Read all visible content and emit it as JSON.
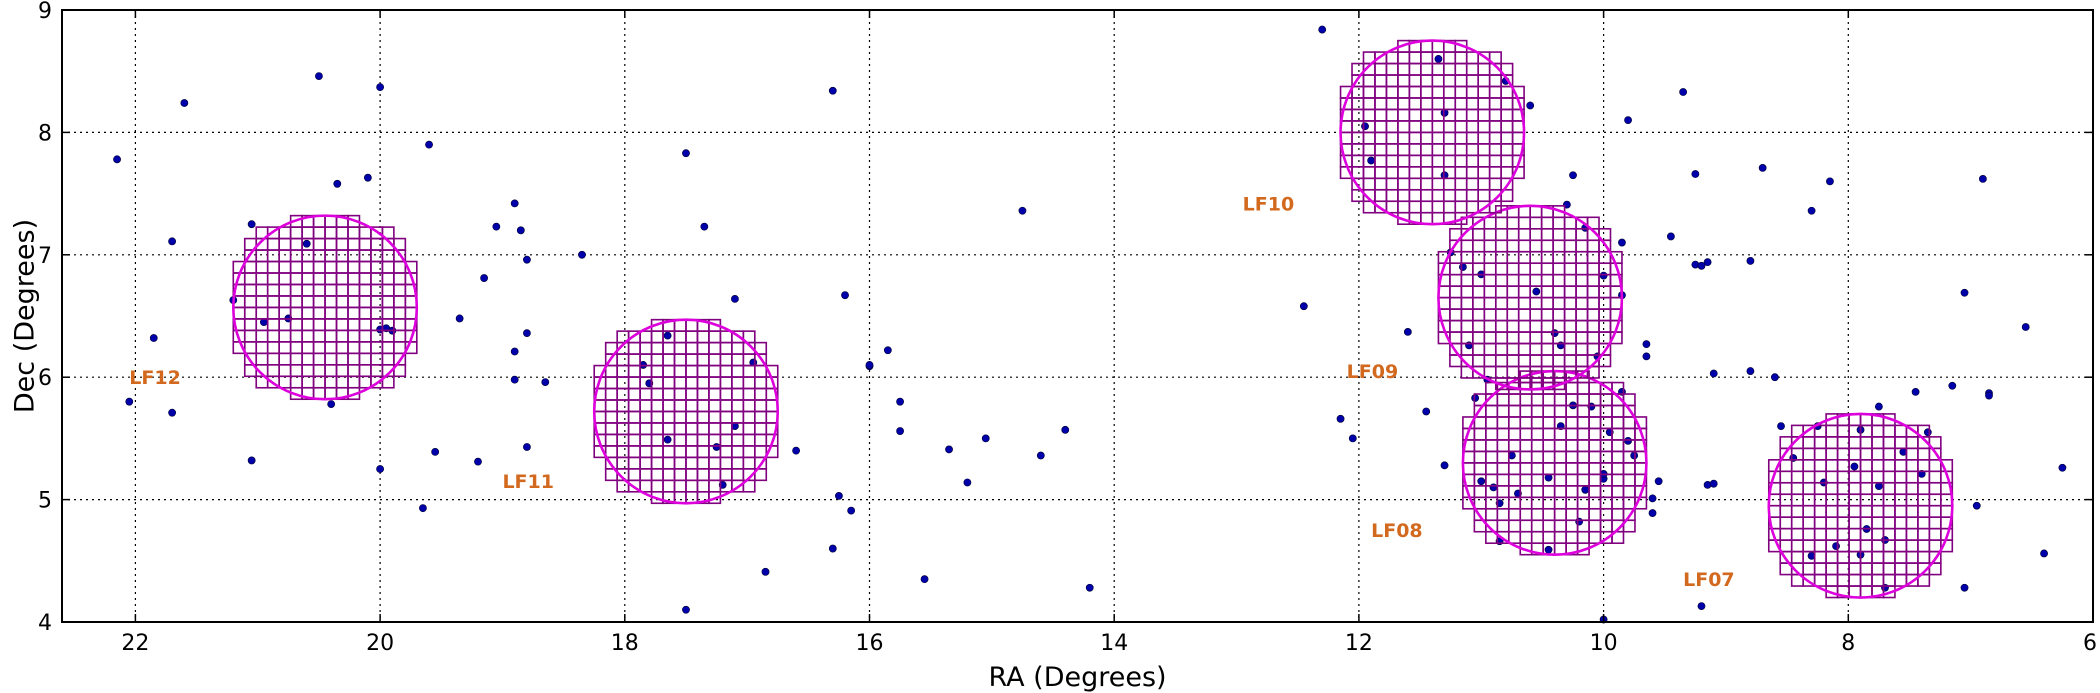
{
  "chart_data": {
    "type": "scatter",
    "title": "",
    "xlabel": "RA (Degrees)",
    "ylabel": "Dec (Degrees)",
    "xlim": [
      22.6,
      6.0
    ],
    "ylim": [
      4,
      9
    ],
    "x_reversed": true,
    "grid": true,
    "x_ticks": [
      22,
      20,
      18,
      16,
      14,
      12,
      10,
      8,
      6
    ],
    "y_ticks": [
      4,
      5,
      6,
      7,
      8,
      9
    ],
    "colors": {
      "points": "#0000aa",
      "circles": "#dd00dd",
      "grid_cells": "#800080",
      "labels": "#d2691e"
    },
    "fields": [
      {
        "label": "LF07",
        "ra": 7.9,
        "dec": 4.95,
        "radius_deg": 0.75,
        "label_ra": 9.35,
        "label_dec": 4.35
      },
      {
        "label": "LF08",
        "ra": 10.4,
        "dec": 5.3,
        "radius_deg": 0.75,
        "label_ra": 11.9,
        "label_dec": 4.75
      },
      {
        "label": "LF09",
        "ra": 10.6,
        "dec": 6.65,
        "radius_deg": 0.75,
        "label_ra": 12.1,
        "label_dec": 6.05
      },
      {
        "label": "LF10",
        "ra": 11.4,
        "dec": 8.0,
        "radius_deg": 0.75,
        "label_ra": 12.95,
        "label_dec": 7.42
      },
      {
        "label": "LF11",
        "ra": 17.5,
        "dec": 5.72,
        "radius_deg": 0.75,
        "label_ra": 19.0,
        "label_dec": 5.15
      },
      {
        "label": "LF12",
        "ra": 20.45,
        "dec": 6.57,
        "radius_deg": 0.75,
        "label_ra": 22.05,
        "label_dec": 6.0
      }
    ],
    "points": [
      [
        22.15,
        7.78
      ],
      [
        21.6,
        8.24
      ],
      [
        21.85,
        6.32
      ],
      [
        21.7,
        7.11
      ],
      [
        22.05,
        5.8
      ],
      [
        21.7,
        5.71
      ],
      [
        21.05,
        5.32
      ],
      [
        21.2,
        6.63
      ],
      [
        21.05,
        7.25
      ],
      [
        20.95,
        6.45
      ],
      [
        20.75,
        6.48
      ],
      [
        20.6,
        7.09
      ],
      [
        20.5,
        8.46
      ],
      [
        20.35,
        7.58
      ],
      [
        20.4,
        5.78
      ],
      [
        20.1,
        7.63
      ],
      [
        20.0,
        8.37
      ],
      [
        20.0,
        6.39
      ],
      [
        19.95,
        6.4
      ],
      [
        19.9,
        6.38
      ],
      [
        20.0,
        5.25
      ],
      [
        19.65,
        4.93
      ],
      [
        19.6,
        7.9
      ],
      [
        19.55,
        5.39
      ],
      [
        19.35,
        6.48
      ],
      [
        19.2,
        5.31
      ],
      [
        19.15,
        6.81
      ],
      [
        19.05,
        7.23
      ],
      [
        18.9,
        7.42
      ],
      [
        18.85,
        7.2
      ],
      [
        18.9,
        6.21
      ],
      [
        18.9,
        5.98
      ],
      [
        18.8,
        6.96
      ],
      [
        18.8,
        6.36
      ],
      [
        18.8,
        5.43
      ],
      [
        18.65,
        5.96
      ],
      [
        18.35,
        7.0
      ],
      [
        17.85,
        6.1
      ],
      [
        17.8,
        5.95
      ],
      [
        17.65,
        6.34
      ],
      [
        17.65,
        5.49
      ],
      [
        17.5,
        7.83
      ],
      [
        17.35,
        7.23
      ],
      [
        17.25,
        5.43
      ],
      [
        17.2,
        5.12
      ],
      [
        17.1,
        6.64
      ],
      [
        17.1,
        5.6
      ],
      [
        16.95,
        6.12
      ],
      [
        16.85,
        4.41
      ],
      [
        16.6,
        5.4
      ],
      [
        16.3,
        8.34
      ],
      [
        16.3,
        4.6
      ],
      [
        16.25,
        5.03
      ],
      [
        16.2,
        6.67
      ],
      [
        16.15,
        4.91
      ],
      [
        16.0,
        6.09
      ],
      [
        16.0,
        6.1
      ],
      [
        15.85,
        6.22
      ],
      [
        15.75,
        5.8
      ],
      [
        15.75,
        5.56
      ],
      [
        15.55,
        4.35
      ],
      [
        15.35,
        5.41
      ],
      [
        15.2,
        5.14
      ],
      [
        15.05,
        5.5
      ],
      [
        14.75,
        7.36
      ],
      [
        14.6,
        5.36
      ],
      [
        14.4,
        5.57
      ],
      [
        14.2,
        4.28
      ],
      [
        17.5,
        4.1
      ],
      [
        12.3,
        8.84
      ],
      [
        12.45,
        6.58
      ],
      [
        12.15,
        5.66
      ],
      [
        12.05,
        5.5
      ],
      [
        11.95,
        8.05
      ],
      [
        11.9,
        7.77
      ],
      [
        11.6,
        6.37
      ],
      [
        11.45,
        5.72
      ],
      [
        11.35,
        8.6
      ],
      [
        11.3,
        7.65
      ],
      [
        11.3,
        8.16
      ],
      [
        11.3,
        5.28
      ],
      [
        11.25,
        7.02
      ],
      [
        11.15,
        6.9
      ],
      [
        11.1,
        6.26
      ],
      [
        11.05,
        5.83
      ],
      [
        11.0,
        6.84
      ],
      [
        11.0,
        5.15
      ],
      [
        10.95,
        5.98
      ],
      [
        10.9,
        5.1
      ],
      [
        10.85,
        4.97
      ],
      [
        10.85,
        4.66
      ],
      [
        10.8,
        8.42
      ],
      [
        10.75,
        5.36
      ],
      [
        10.7,
        5.05
      ],
      [
        10.6,
        8.22
      ],
      [
        10.55,
        6.7
      ],
      [
        10.45,
        5.18
      ],
      [
        10.45,
        4.59
      ],
      [
        10.4,
        6.36
      ],
      [
        10.35,
        6.26
      ],
      [
        10.35,
        5.6
      ],
      [
        10.3,
        7.41
      ],
      [
        10.25,
        7.65
      ],
      [
        10.25,
        5.77
      ],
      [
        10.2,
        4.82
      ],
      [
        10.15,
        7.22
      ],
      [
        10.15,
        5.08
      ],
      [
        10.1,
        5.76
      ],
      [
        10.05,
        6.17
      ],
      [
        10.0,
        5.17
      ],
      [
        10.0,
        5.21
      ],
      [
        10.0,
        6.83
      ],
      [
        9.95,
        5.55
      ],
      [
        9.85,
        6.67
      ],
      [
        9.85,
        5.88
      ],
      [
        10.0,
        4.02
      ],
      [
        9.85,
        7.1
      ],
      [
        9.8,
        8.1
      ],
      [
        9.8,
        5.48
      ],
      [
        9.75,
        5.36
      ],
      [
        9.65,
        6.27
      ],
      [
        9.65,
        6.17
      ],
      [
        9.6,
        5.01
      ],
      [
        9.6,
        4.89
      ],
      [
        9.55,
        5.15
      ],
      [
        9.45,
        7.15
      ],
      [
        9.35,
        8.33
      ],
      [
        9.25,
        7.66
      ],
      [
        9.25,
        6.92
      ],
      [
        9.2,
        6.91
      ],
      [
        9.15,
        6.94
      ],
      [
        9.15,
        5.12
      ],
      [
        9.1,
        5.13
      ],
      [
        9.1,
        6.03
      ],
      [
        9.2,
        4.13
      ],
      [
        8.8,
        6.95
      ],
      [
        8.8,
        6.05
      ],
      [
        8.7,
        7.71
      ],
      [
        8.6,
        6.0
      ],
      [
        8.55,
        5.6
      ],
      [
        8.45,
        5.34
      ],
      [
        8.3,
        4.54
      ],
      [
        8.3,
        7.36
      ],
      [
        8.25,
        5.6
      ],
      [
        8.2,
        5.14
      ],
      [
        8.15,
        7.6
      ],
      [
        7.95,
        5.27
      ],
      [
        7.9,
        4.55
      ],
      [
        7.85,
        4.76
      ],
      [
        7.75,
        5.11
      ],
      [
        7.75,
        5.76
      ],
      [
        7.7,
        4.67
      ],
      [
        7.7,
        4.28
      ],
      [
        7.55,
        5.39
      ],
      [
        7.45,
        5.88
      ],
      [
        7.4,
        5.21
      ],
      [
        7.35,
        5.55
      ],
      [
        7.15,
        5.93
      ],
      [
        7.05,
        6.69
      ],
      [
        7.05,
        4.28
      ],
      [
        6.95,
        4.95
      ],
      [
        6.9,
        7.62
      ],
      [
        6.85,
        5.87
      ],
      [
        6.85,
        5.85
      ],
      [
        6.55,
        6.41
      ],
      [
        6.4,
        4.56
      ],
      [
        6.25,
        5.26
      ],
      [
        7.9,
        5.57
      ],
      [
        8.1,
        4.62
      ]
    ]
  }
}
